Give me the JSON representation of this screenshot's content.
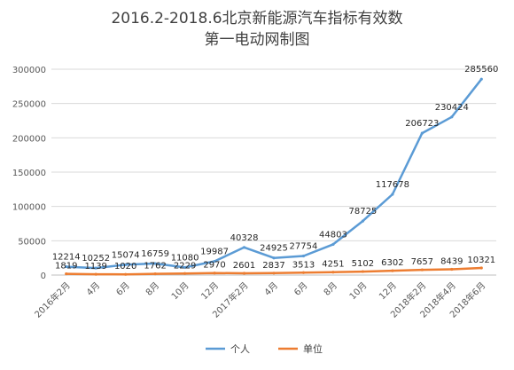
{
  "chart_data": {
    "type": "line",
    "title": "2016.2-2018.6北京新能源汽车指标有效数",
    "subtitle": "第一电动网制图",
    "xlabel": "",
    "ylabel": "",
    "categories": [
      "2016年2月",
      "4月",
      "6月",
      "8月",
      "10月",
      "12月",
      "2017年2月",
      "4月",
      "6月",
      "8月",
      "10月",
      "12月",
      "2018年2月",
      "2018年4月",
      "2018年6月"
    ],
    "series": [
      {
        "name": "个人",
        "color": "#5b9bd5",
        "values": [
          12214,
          10252,
          15074,
          16759,
          11080,
          19987,
          40328,
          24925,
          27754,
          44803,
          78725,
          117678,
          206723,
          230424,
          285560
        ]
      },
      {
        "name": "单位",
        "color": "#ed7d31",
        "values": [
          1819,
          1139,
          1020,
          1762,
          2229,
          2970,
          2601,
          2837,
          3513,
          4251,
          5102,
          6302,
          7657,
          8439,
          10321
        ]
      }
    ],
    "y_ticks": [
      "0",
      "50000",
      "100000",
      "150000",
      "200000",
      "250000",
      "300000"
    ],
    "ylim": [
      0,
      300000
    ],
    "grid": true,
    "legend_position": "bottom"
  }
}
